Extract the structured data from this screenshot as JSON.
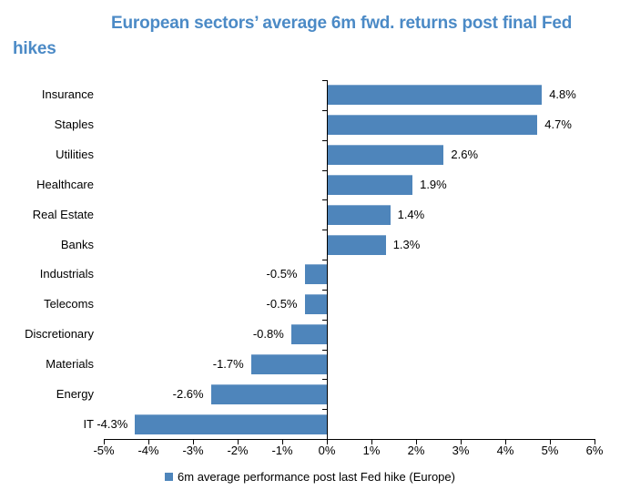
{
  "colors": {
    "title_blue": "#4b8ac6",
    "bar_blue": "#4e85bb",
    "axis_black": "#000000",
    "text_black": "#000000"
  },
  "chart_data": {
    "type": "bar",
    "orientation": "horizontal",
    "title": "European sectors’ average 6m fwd. returns post final Fed hikes",
    "categories": [
      "Insurance",
      "Staples",
      "Utilities",
      "Healthcare",
      "Real Estate",
      "Banks",
      "Industrials",
      "Telecoms",
      "Discretionary",
      "Materials",
      "Energy",
      "IT"
    ],
    "values": [
      4.8,
      4.7,
      2.6,
      1.9,
      1.4,
      1.3,
      -0.5,
      -0.5,
      -0.8,
      -1.7,
      -2.6,
      -4.3
    ],
    "value_label_suffix": "%",
    "data_label_position": "outside-end",
    "xlim": [
      -5,
      6
    ],
    "x_tick_values": [
      -5,
      -4,
      -3,
      -2,
      -1,
      0,
      1,
      2,
      3,
      4,
      5,
      6
    ],
    "x_tick_labels": [
      "-5%",
      "-4%",
      "-3%",
      "-2%",
      "-1%",
      "0%",
      "1%",
      "2%",
      "3%",
      "4%",
      "5%",
      "6%"
    ],
    "grid": false,
    "bar_color": "#4e85bb",
    "legend": {
      "position": "bottom",
      "entries": [
        {
          "label": "6m average performance post last Fed hike (Europe)",
          "color": "#4e85bb"
        }
      ]
    }
  }
}
